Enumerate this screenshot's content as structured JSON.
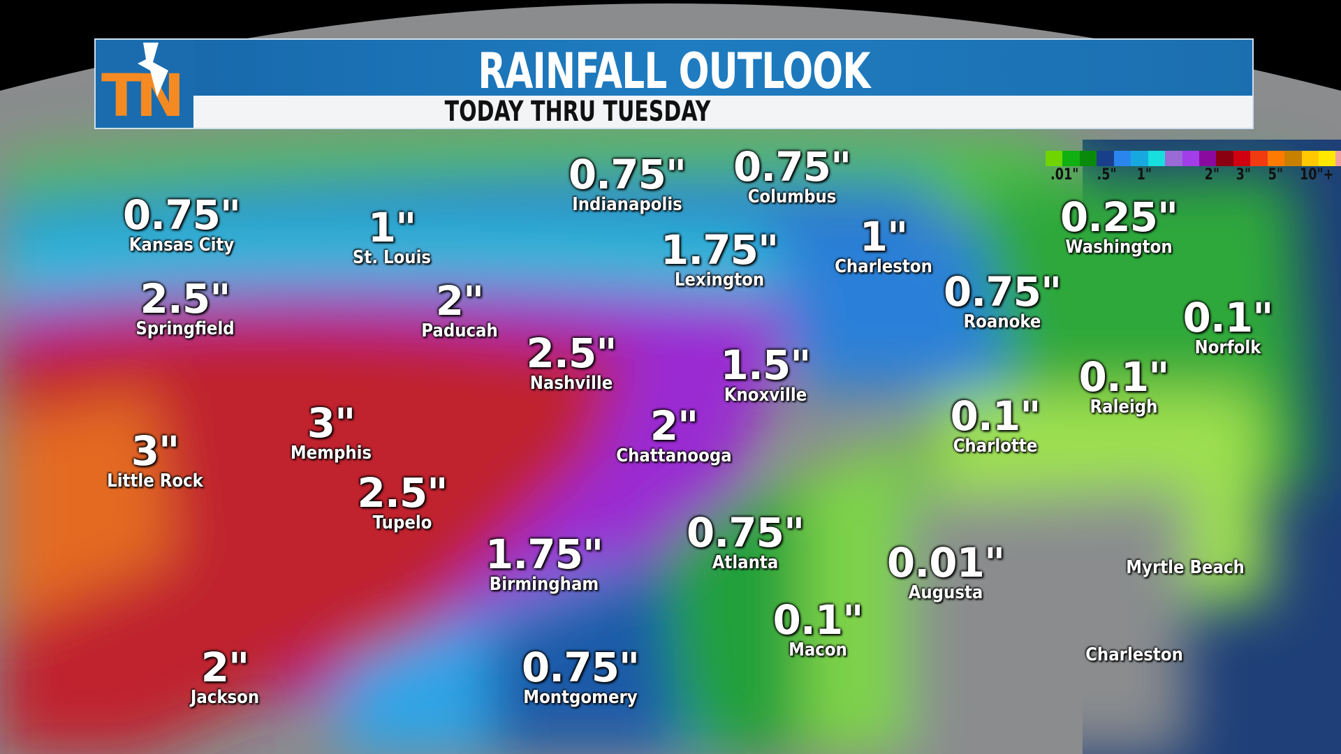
{
  "header": {
    "title": "RAINFALL OUTLOOK",
    "subtitle": "TODAY THRU TUESDAY",
    "logo_text": "TN",
    "logo_colors": {
      "orange": "#f58a22",
      "blue": "#1a6cae"
    }
  },
  "legend": {
    "colors": [
      "#6fd400",
      "#10b010",
      "#0a8a0a",
      "#1a3f8a",
      "#2a86ee",
      "#18a8e0",
      "#18dede",
      "#9a6ad6",
      "#a23ee8",
      "#8a0aa0",
      "#8a0010",
      "#d00010",
      "#f03a10",
      "#ff7a00",
      "#c88000",
      "#ffc800",
      "#ffe800",
      "#f0a0a0"
    ],
    "labels": [
      ".01\"",
      ".5\"",
      "1\"",
      "2\"",
      "3\"",
      "5\"",
      "10\"+"
    ]
  },
  "cities": [
    {
      "value": "0.75\"",
      "name": "Kansas City"
    },
    {
      "value": "1\"",
      "name": "St. Louis"
    },
    {
      "value": "0.75\"",
      "name": "Indianapolis"
    },
    {
      "value": "0.75\"",
      "name": "Columbus"
    },
    {
      "value": "1.75\"",
      "name": "Lexington"
    },
    {
      "value": "1\"",
      "name": "Charleston"
    },
    {
      "value": "0.25\"",
      "name": "Washington"
    },
    {
      "value": "2.5\"",
      "name": "Springfield"
    },
    {
      "value": "2\"",
      "name": "Paducah"
    },
    {
      "value": "0.75\"",
      "name": "Roanoke"
    },
    {
      "value": "0.1\"",
      "name": "Norfolk"
    },
    {
      "value": "2.5\"",
      "name": "Nashville"
    },
    {
      "value": "1.5\"",
      "name": "Knoxville"
    },
    {
      "value": "0.1\"",
      "name": "Raleigh"
    },
    {
      "value": "3\"",
      "name": "Memphis"
    },
    {
      "value": "3\"",
      "name": "Little Rock"
    },
    {
      "value": "2\"",
      "name": "Chattanooga"
    },
    {
      "value": "0.1\"",
      "name": "Charlotte"
    },
    {
      "value": "2.5\"",
      "name": "Tupelo"
    },
    {
      "value": "0.75\"",
      "name": "Atlanta"
    },
    {
      "value": "1.75\"",
      "name": "Birmingham"
    },
    {
      "value": "0.01\"",
      "name": "Augusta"
    },
    {
      "value": "",
      "name": "Myrtle Beach"
    },
    {
      "value": "0.1\"",
      "name": "Macon"
    },
    {
      "value": "",
      "name": "Charleston"
    },
    {
      "value": "2\"",
      "name": "Jackson"
    },
    {
      "value": "0.75\"",
      "name": "Montgomery"
    }
  ]
}
